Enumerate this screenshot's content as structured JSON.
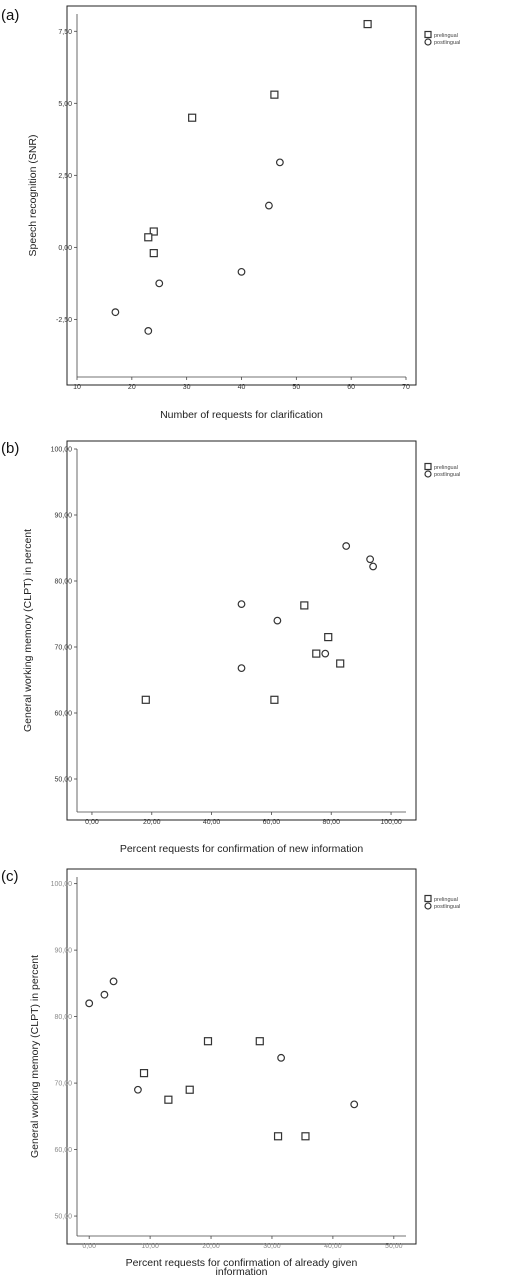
{
  "legend": {
    "prelingual": "prelingual",
    "postlingual": "postlingual"
  },
  "chart_data": [
    {
      "panel": "(a)",
      "type": "scatter",
      "xlabel": "Number of requests for clarification",
      "ylabel": "Speech recognition (SNR)",
      "xlim": [
        10,
        70
      ],
      "ylim": [
        -4.5,
        8.1
      ],
      "xticks": [
        10,
        20,
        30,
        40,
        50,
        60,
        70
      ],
      "xtick_labels": [
        "10",
        "20",
        "30",
        "40",
        "50",
        "60",
        "70"
      ],
      "yticks": [
        7.5,
        5.0,
        2.5,
        0.0,
        -2.5
      ],
      "ytick_labels": [
        "7,50",
        "5,00",
        "2,50",
        "0,00",
        "-2,50"
      ],
      "series": [
        {
          "name": "prelingual",
          "marker": "square",
          "points": [
            [
              63,
              7.75
            ],
            [
              46,
              5.3
            ],
            [
              31,
              4.5
            ],
            [
              24,
              0.55
            ],
            [
              23,
              0.35
            ],
            [
              24,
              -0.2
            ]
          ]
        },
        {
          "name": "postlingual",
          "marker": "circle",
          "points": [
            [
              47,
              2.95
            ],
            [
              45,
              1.45
            ],
            [
              40,
              -0.85
            ],
            [
              25,
              -1.25
            ],
            [
              17,
              -2.25
            ],
            [
              23,
              -2.9
            ]
          ]
        }
      ]
    },
    {
      "panel": "(b)",
      "type": "scatter",
      "xlabel": "Percent requests for confirmation of new information",
      "ylabel": "General working memory (CLPT) in percent",
      "xlim": [
        -5,
        105
      ],
      "ylim": [
        45,
        100
      ],
      "xticks": [
        0,
        20,
        40,
        60,
        80,
        100
      ],
      "xtick_labels": [
        "0,00",
        "20,00",
        "40,00",
        "60,00",
        "80,00",
        "100,00"
      ],
      "yticks": [
        100,
        90,
        80,
        70,
        60,
        50
      ],
      "ytick_labels": [
        "100,00",
        "90,00",
        "80,00",
        "70,00",
        "60,00",
        "50,00"
      ],
      "series": [
        {
          "name": "prelingual",
          "marker": "square",
          "points": [
            [
              71,
              76.3
            ],
            [
              79,
              71.5
            ],
            [
              75,
              69
            ],
            [
              83,
              67.5
            ],
            [
              18,
              62
            ],
            [
              61,
              62
            ]
          ]
        },
        {
          "name": "postlingual",
          "marker": "circle",
          "points": [
            [
              85,
              85.3
            ],
            [
              93,
              83.3
            ],
            [
              94,
              82.2
            ],
            [
              50,
              76.5
            ],
            [
              62,
              74
            ],
            [
              78,
              69
            ],
            [
              50,
              66.8
            ]
          ]
        }
      ]
    },
    {
      "panel": "(c)",
      "type": "scatter",
      "xlabel": "Percent requests for confirmation of already given information",
      "ylabel": "General working memory (CLPT) in percent",
      "xlim": [
        -2,
        52
      ],
      "ylim": [
        47,
        101
      ],
      "xticks": [
        0,
        10,
        20,
        30,
        40,
        50
      ],
      "xtick_labels": [
        "0,00",
        "10,00",
        "20,00",
        "30,00",
        "40,00",
        "50,00"
      ],
      "yticks": [
        100,
        90,
        80,
        70,
        60,
        50
      ],
      "ytick_labels": [
        "100,00",
        "90,00",
        "80,00",
        "70,00",
        "60,00",
        "50,00"
      ],
      "series": [
        {
          "name": "prelingual",
          "marker": "square",
          "points": [
            [
              19.5,
              76.3
            ],
            [
              28,
              76.3
            ],
            [
              9,
              71.5
            ],
            [
              16.5,
              69
            ],
            [
              13,
              67.5
            ],
            [
              31,
              62
            ],
            [
              35.5,
              62
            ]
          ]
        },
        {
          "name": "postlingual",
          "marker": "circle",
          "points": [
            [
              0,
              82
            ],
            [
              2.5,
              83.3
            ],
            [
              4,
              85.3
            ],
            [
              31.5,
              73.8
            ],
            [
              8,
              69
            ],
            [
              43.5,
              66.8
            ]
          ]
        }
      ]
    }
  ]
}
